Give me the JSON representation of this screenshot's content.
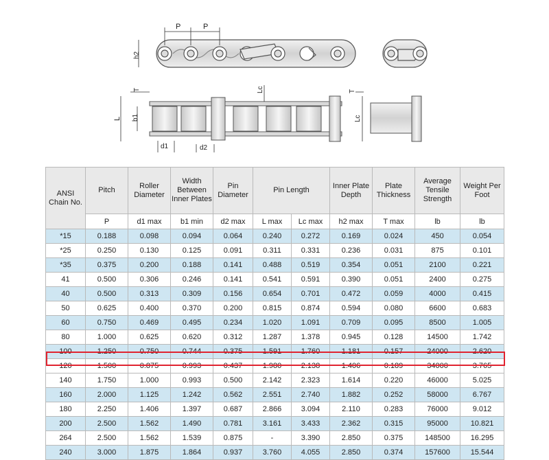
{
  "diagram": {
    "labels": {
      "p": "P",
      "h2": "h2",
      "t": "T",
      "lc": "Lc",
      "l": "L",
      "b1": "b1",
      "d1": "d1",
      "d2": "d2"
    }
  },
  "table": {
    "headers": [
      {
        "label": "ANSI Chain No.",
        "unit": ""
      },
      {
        "label": "Pitch",
        "unit": "P"
      },
      {
        "label": "Roller Diameter",
        "unit": "d1 max"
      },
      {
        "label": "Width Between Inner Plates",
        "unit": "b1 min"
      },
      {
        "label": "Pin Diameter",
        "unit": "d2 max"
      },
      {
        "label": "Pin Length",
        "unit": "L max"
      },
      {
        "label": "",
        "unit": "Lc max"
      },
      {
        "label": "Inner Plate Depth",
        "unit": "h2 max"
      },
      {
        "label": "Plate Thickness",
        "unit": "T max"
      },
      {
        "label": "Average Tensile Strength",
        "unit": "lb"
      },
      {
        "label": "Weight Per Foot",
        "unit": "lb"
      }
    ],
    "rows": [
      [
        "*15",
        "0.188",
        "0.098",
        "0.094",
        "0.064",
        "0.240",
        "0.272",
        "0.169",
        "0.024",
        "450",
        "0.054"
      ],
      [
        "*25",
        "0.250",
        "0.130",
        "0.125",
        "0.091",
        "0.311",
        "0.331",
        "0.236",
        "0.031",
        "875",
        "0.101"
      ],
      [
        "*35",
        "0.375",
        "0.200",
        "0.188",
        "0.141",
        "0.488",
        "0.519",
        "0.354",
        "0.051",
        "2100",
        "0.221"
      ],
      [
        "41",
        "0.500",
        "0.306",
        "0.246",
        "0.141",
        "0.541",
        "0.591",
        "0.390",
        "0.051",
        "2400",
        "0.275"
      ],
      [
        "40",
        "0.500",
        "0.313",
        "0.309",
        "0.156",
        "0.654",
        "0.701",
        "0.472",
        "0.059",
        "4000",
        "0.415"
      ],
      [
        "50",
        "0.625",
        "0.400",
        "0.370",
        "0.200",
        "0.815",
        "0.874",
        "0.594",
        "0.080",
        "6600",
        "0.683"
      ],
      [
        "60",
        "0.750",
        "0.469",
        "0.495",
        "0.234",
        "1.020",
        "1.091",
        "0.709",
        "0.095",
        "8500",
        "1.005"
      ],
      [
        "80",
        "1.000",
        "0.625",
        "0.620",
        "0.312",
        "1.287",
        "1.378",
        "0.945",
        "0.128",
        "14500",
        "1.742"
      ],
      [
        "100",
        "1.250",
        "0.750",
        "0.744",
        "0.375",
        "1.591",
        "1.760",
        "1.181",
        "0.157",
        "24000",
        "2.620"
      ],
      [
        "120",
        "1.500",
        "0.875",
        "0.993",
        "0.437",
        "1.980",
        "2.138",
        "1.406",
        "0.189",
        "34000",
        "3.765"
      ],
      [
        "140",
        "1.750",
        "1.000",
        "0.993",
        "0.500",
        "2.142",
        "2.323",
        "1.614",
        "0.220",
        "46000",
        "5.025"
      ],
      [
        "160",
        "2.000",
        "1.125",
        "1.242",
        "0.562",
        "2.551",
        "2.740",
        "1.882",
        "0.252",
        "58000",
        "6.767"
      ],
      [
        "180",
        "2.250",
        "1.406",
        "1.397",
        "0.687",
        "2.866",
        "3.094",
        "2.110",
        "0.283",
        "76000",
        "9.012"
      ],
      [
        "200",
        "2.500",
        "1.562",
        "1.490",
        "0.781",
        "3.161",
        "3.433",
        "2.362",
        "0.315",
        "95000",
        "10.821"
      ],
      [
        "264",
        "2.500",
        "1.562",
        "1.539",
        "0.875",
        "-",
        "3.390",
        "2.850",
        "0.375",
        "148500",
        "16.295"
      ],
      [
        "240",
        "3.000",
        "1.875",
        "1.864",
        "0.937",
        "3.760",
        "4.055",
        "2.850",
        "0.374",
        "157600",
        "15.544"
      ]
    ],
    "row_colors": [
      "blue",
      "white",
      "blue",
      "white",
      "blue",
      "white",
      "blue",
      "white",
      "blue",
      "white",
      "white",
      "blue",
      "white",
      "blue",
      "white",
      "blue"
    ],
    "highlighted_row": "140",
    "highlight_color": "#e0232f"
  }
}
